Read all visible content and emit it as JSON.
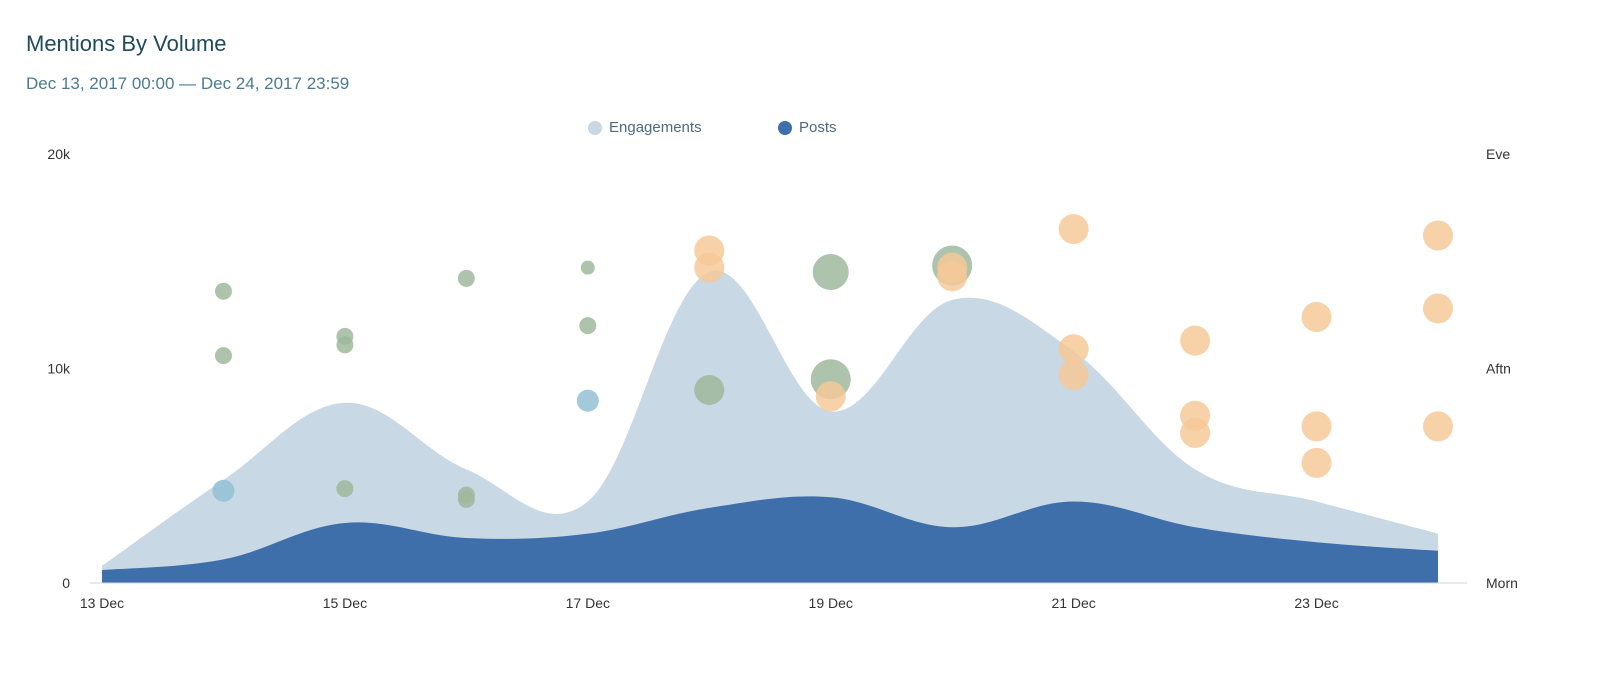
{
  "title": "Mentions By Volume",
  "subtitle": "Dec 13, 2017 00:00 — Dec 24, 2017 23:59",
  "colors": {
    "engagements": "#c8d8e4",
    "posts": "#3e6faa",
    "bubble_green": "#9fb99c",
    "bubble_orange": "#f6c999",
    "bubble_blue": "#93c1d4"
  },
  "chart_data": {
    "type": "area",
    "categories": [
      "13 Dec",
      "14 Dec",
      "15 Dec",
      "16 Dec",
      "17 Dec",
      "18 Dec",
      "19 Dec",
      "20 Dec",
      "21 Dec",
      "22 Dec",
      "23 Dec",
      "24 Dec"
    ],
    "x_tick_labels": [
      "13 Dec",
      "15 Dec",
      "17 Dec",
      "19 Dec",
      "21 Dec",
      "23 Dec"
    ],
    "series": [
      {
        "name": "Engagements",
        "values": [
          800,
          4800,
          8400,
          5300,
          3800,
          14500,
          8000,
          13200,
          10800,
          5300,
          3800,
          2300
        ]
      },
      {
        "name": "Posts",
        "values": [
          600,
          1100,
          2800,
          2100,
          2300,
          3500,
          4000,
          2600,
          3800,
          2600,
          1900,
          1500
        ]
      }
    ],
    "ylim": [
      0,
      20000
    ],
    "y_tick_labels": [
      "0",
      "10k",
      "20k"
    ],
    "y2_tick_labels": [
      "Morn",
      "Aftn",
      "Eve"
    ],
    "legend_position": "top-center",
    "bubbles": [
      {
        "day": 1,
        "y": 13600,
        "size": "small",
        "color": "green"
      },
      {
        "day": 1,
        "y": 10600,
        "size": "small",
        "color": "green"
      },
      {
        "day": 1,
        "y": 4300,
        "size": "medium",
        "color": "blue"
      },
      {
        "day": 2,
        "y": 11500,
        "size": "small",
        "color": "green"
      },
      {
        "day": 2,
        "y": 11100,
        "size": "small",
        "color": "green"
      },
      {
        "day": 2,
        "y": 4400,
        "size": "small",
        "color": "green"
      },
      {
        "day": 3,
        "y": 14200,
        "size": "small",
        "color": "green"
      },
      {
        "day": 3,
        "y": 4100,
        "size": "small",
        "color": "green"
      },
      {
        "day": 3,
        "y": 3900,
        "size": "small",
        "color": "green"
      },
      {
        "day": 4,
        "y": 14700,
        "size": "tiny",
        "color": "green"
      },
      {
        "day": 4,
        "y": 12000,
        "size": "small",
        "color": "green"
      },
      {
        "day": 4,
        "y": 8500,
        "size": "medium",
        "color": "blue"
      },
      {
        "day": 5,
        "y": 15500,
        "size": "large",
        "color": "orange"
      },
      {
        "day": 5,
        "y": 14700,
        "size": "large",
        "color": "orange"
      },
      {
        "day": 5,
        "y": 9000,
        "size": "large",
        "color": "green"
      },
      {
        "day": 6,
        "y": 14500,
        "size": "xlarge",
        "color": "green"
      },
      {
        "day": 6,
        "y": 9500,
        "size": "xxlarge",
        "color": "green"
      },
      {
        "day": 6,
        "y": 8700,
        "size": "large",
        "color": "orange"
      },
      {
        "day": 7,
        "y": 14800,
        "size": "xxlarge",
        "color": "green"
      },
      {
        "day": 7,
        "y": 14700,
        "size": "large",
        "color": "orange"
      },
      {
        "day": 7,
        "y": 14300,
        "size": "large",
        "color": "orange"
      },
      {
        "day": 8,
        "y": 16500,
        "size": "large",
        "color": "orange"
      },
      {
        "day": 8,
        "y": 10900,
        "size": "large",
        "color": "orange"
      },
      {
        "day": 8,
        "y": 9700,
        "size": "large",
        "color": "orange"
      },
      {
        "day": 9,
        "y": 11300,
        "size": "large",
        "color": "orange"
      },
      {
        "day": 9,
        "y": 7800,
        "size": "large",
        "color": "orange"
      },
      {
        "day": 9,
        "y": 7000,
        "size": "large",
        "color": "orange"
      },
      {
        "day": 10,
        "y": 12400,
        "size": "large",
        "color": "orange"
      },
      {
        "day": 10,
        "y": 7300,
        "size": "large",
        "color": "orange"
      },
      {
        "day": 10,
        "y": 5600,
        "size": "large",
        "color": "orange"
      },
      {
        "day": 11,
        "y": 16200,
        "size": "large",
        "color": "orange"
      },
      {
        "day": 11,
        "y": 12800,
        "size": "large",
        "color": "orange"
      },
      {
        "day": 11,
        "y": 7300,
        "size": "large",
        "color": "orange"
      }
    ]
  }
}
